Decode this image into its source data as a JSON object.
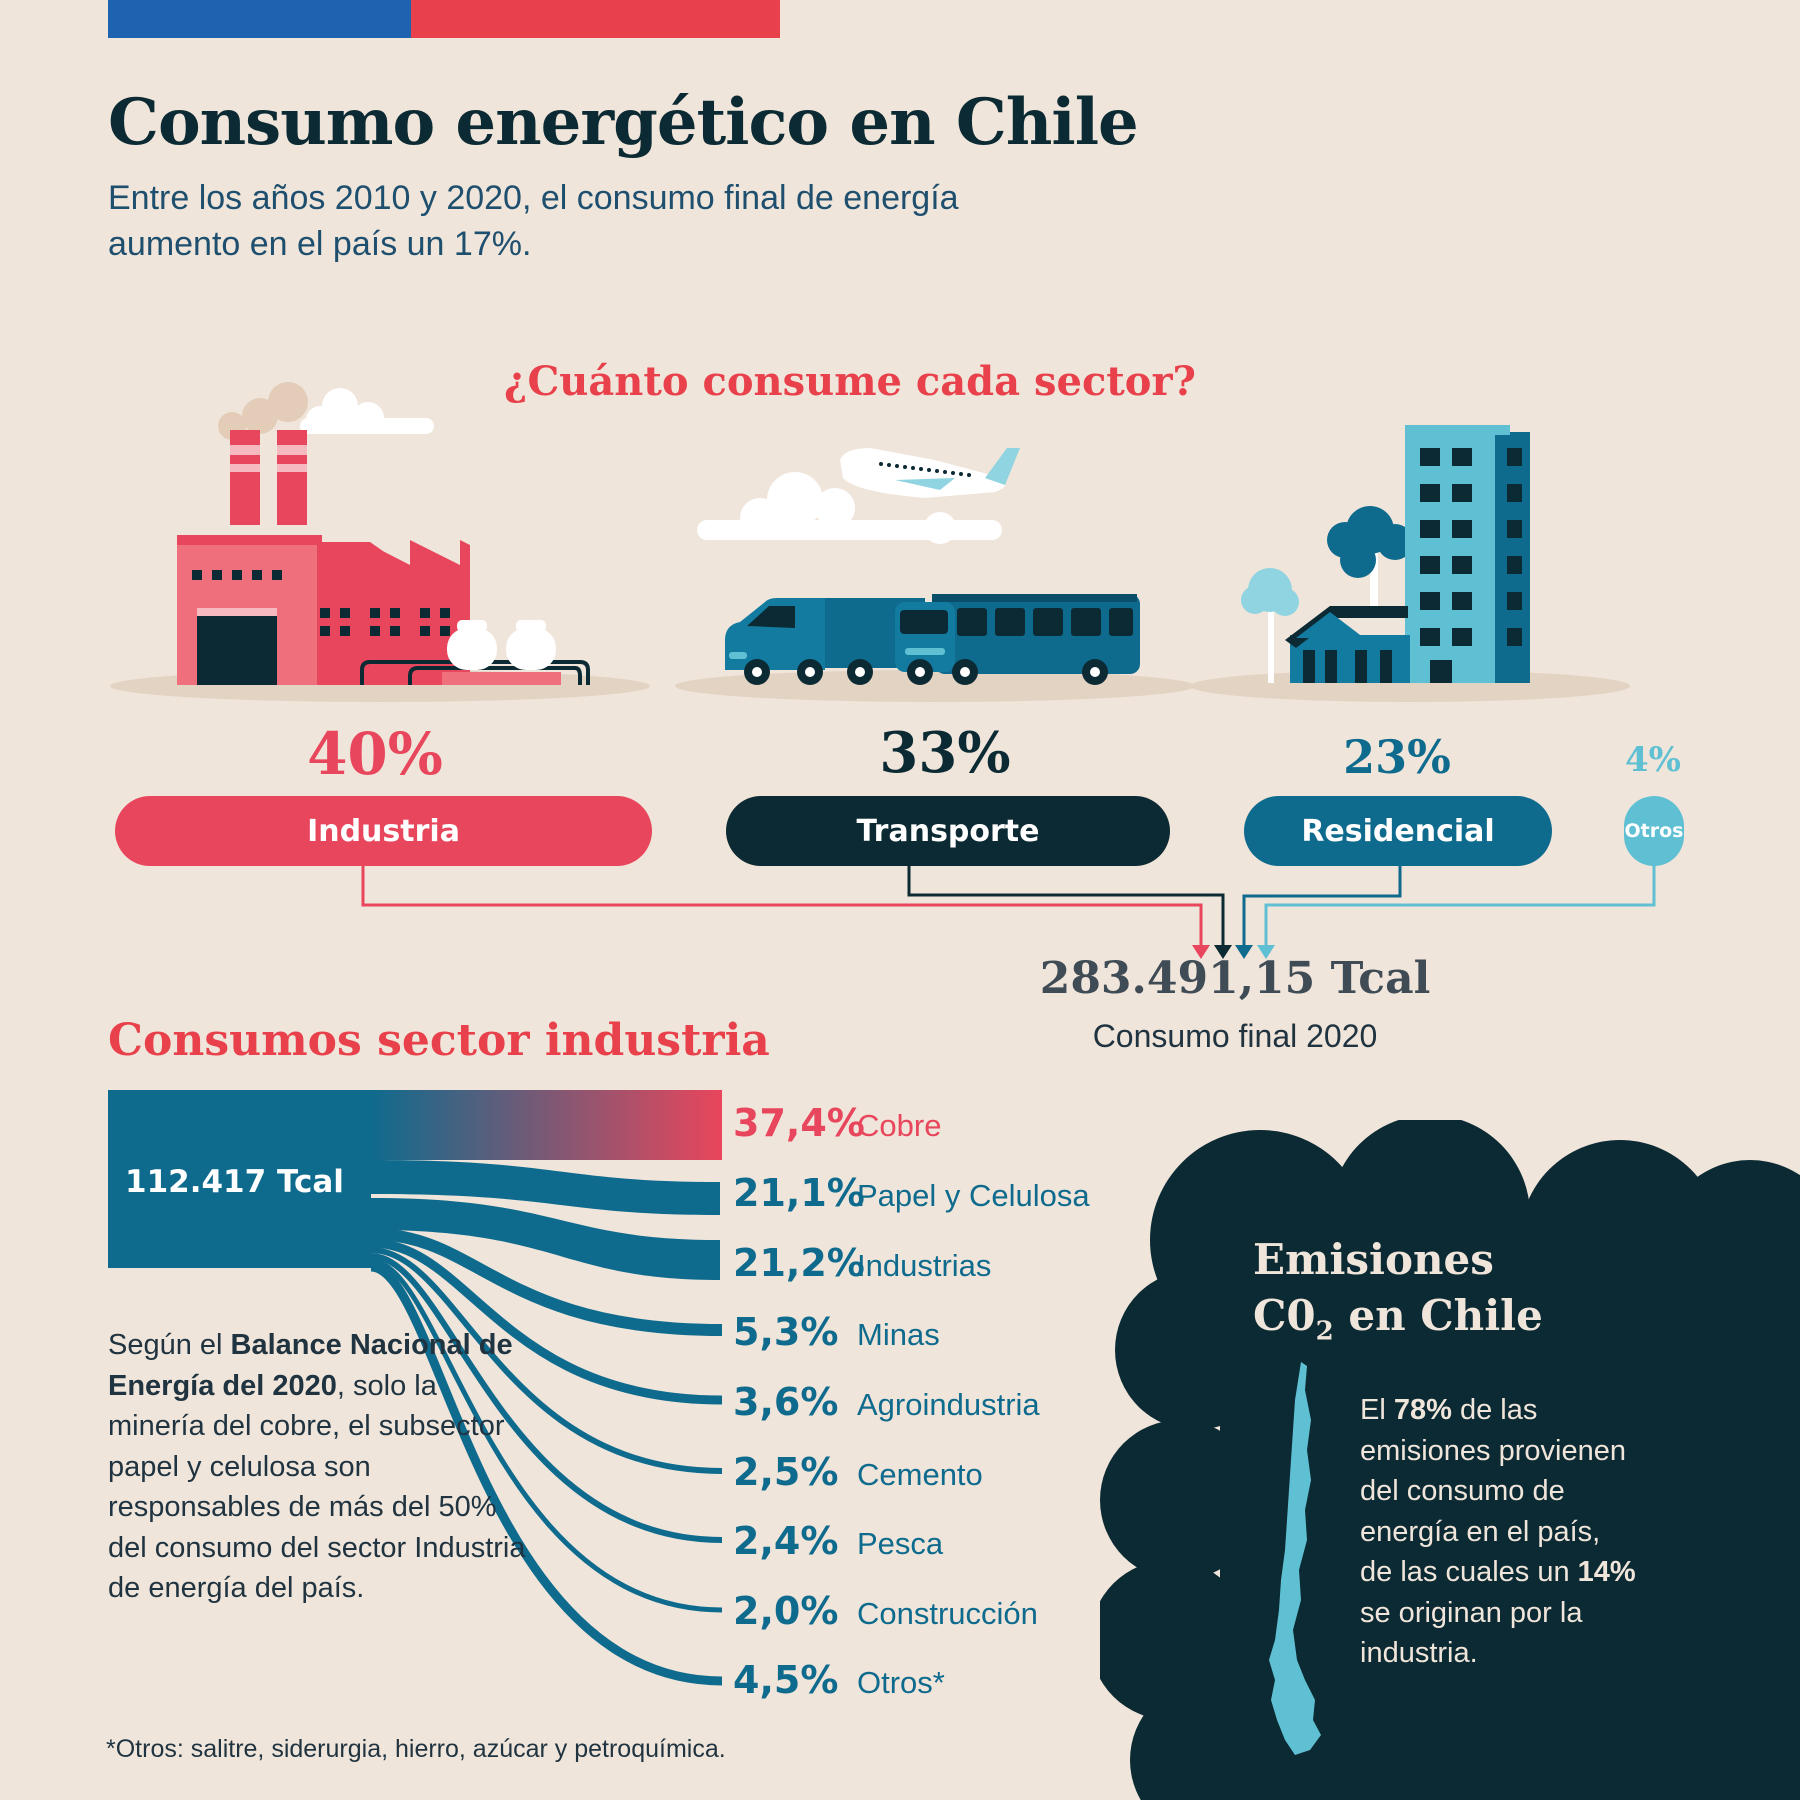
{
  "header": {
    "title": "Consumo energético en Chile",
    "subtitle": "Entre los años 2010 y 2020, el consumo final de energía aumento en el país un 17%."
  },
  "sectors": {
    "question": "¿Cuánto consume cada sector?",
    "items": [
      {
        "pct": "40%",
        "label": "Industria",
        "color": "#e8465c",
        "icon": "factory-icon"
      },
      {
        "pct": "33%",
        "label": "Transporte",
        "color": "#0c2a33",
        "icon": "transport-icon"
      },
      {
        "pct": "23%",
        "label": "Residencial",
        "color": "#0f6b8e",
        "icon": "residential-icon"
      },
      {
        "pct": "4%",
        "label": "Otros",
        "color": "#5fc0d3",
        "icon": ""
      }
    ]
  },
  "total": {
    "value": "283.491,15 Tcal",
    "label": "Consumo final 2020"
  },
  "industry": {
    "title": "Consumos sector industria",
    "total": "112.417 Tcal",
    "rows": [
      {
        "pct": "37,4%",
        "label": "Cobre"
      },
      {
        "pct": "21,1%",
        "label": "Papel y Celulosa"
      },
      {
        "pct": "21,2%",
        "label": "Industrias"
      },
      {
        "pct": "5,3%",
        "label": "Minas"
      },
      {
        "pct": "3,6%",
        "label": "Agroindustria"
      },
      {
        "pct": "2,5%",
        "label": "Cemento"
      },
      {
        "pct": "2,4%",
        "label": "Pesca"
      },
      {
        "pct": "2,0%",
        "label": "Construcción"
      },
      {
        "pct": "4,5%",
        "label": "Otros*"
      }
    ],
    "note": {
      "p1": "Según el ",
      "bold": "Balance Nacional de Energía del 2020",
      "p2": ", solo la minería del cobre, el subsector papel y celulosa son responsables de más del 50% del consumo del sector Industria de energía del país."
    },
    "footnote": "*Otros: salitre, siderurgia, hierro, azúcar y petroquímica."
  },
  "emissions": {
    "title_line1": "Emisiones",
    "title_co": "C0",
    "title_sub": "2",
    "title_rest": " en Chile",
    "t1": "El ",
    "b1": "78%",
    "t2": " de las emisiones provienen del consumo de energía en el país, de las cuales un ",
    "b2": "14%",
    "t3": " se originan por la industria."
  },
  "colors": {
    "background": "#f0e5da",
    "red": "#e8414b",
    "dark": "#0c2a33",
    "blue": "#0f6b8e",
    "light_blue": "#5fc0d3"
  }
}
